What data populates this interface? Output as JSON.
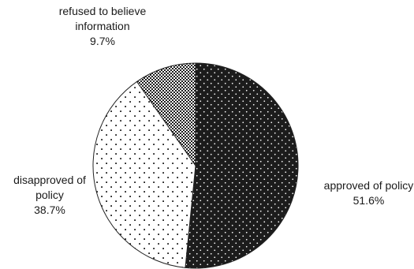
{
  "chart_data": {
    "type": "pie",
    "slices": [
      {
        "label": "approved of policy",
        "label_lines": [
          "approved of policy"
        ],
        "value": 51.6,
        "value_label": "51.6%",
        "pattern": "dark-dots"
      },
      {
        "label": "disapproved of policy",
        "label_lines": [
          "disapproved of",
          "policy"
        ],
        "value": 38.7,
        "value_label": "38.7%",
        "pattern": "light-dots"
      },
      {
        "label": "refused to believe information",
        "label_lines": [
          "refused to believe",
          "information"
        ],
        "value": 9.7,
        "value_label": "9.7%",
        "pattern": "dense-dots"
      }
    ],
    "start_angle": "12 o'clock",
    "direction": "clockwise",
    "legend": "none",
    "colors": {
      "dark": "#1c1c1c",
      "light": "#ffffff",
      "stroke": "#222222"
    }
  }
}
